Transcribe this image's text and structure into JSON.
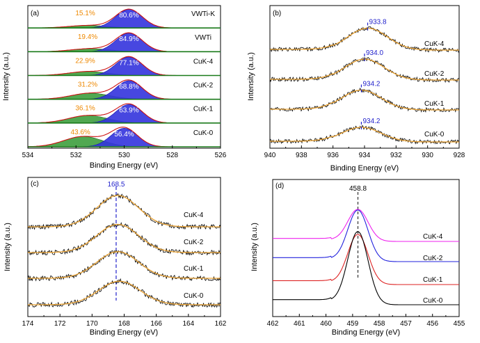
{
  "chart_data": [
    {
      "panel": "(a)",
      "type": "area",
      "xlabel": "Binding Energy (eV)",
      "ylabel": "Intensity (a.u.)",
      "xlim": [
        534,
        526
      ],
      "x_ticks": [
        534,
        532,
        530,
        528,
        526
      ],
      "grid": false,
      "colors": {
        "low_be_peak": "#3333dd",
        "high_be_peak": "#339933",
        "envelope": "#cc1111",
        "pct_low": "#2222cc",
        "pct_high": "#ee8800"
      },
      "series": [
        {
          "name": "VWTi-K",
          "pct_high_be": "15.1%",
          "pct_low_be": "80.6%",
          "peak_low_be": 529.8,
          "peak_high_be": 531.5,
          "area_low_be": 80.6,
          "area_high_be": 15.1
        },
        {
          "name": "VWTi",
          "pct_high_be": "19.4%",
          "pct_low_be": "84.9%",
          "peak_low_be": 529.8,
          "peak_high_be": 531.4,
          "area_low_be": 84.9,
          "area_high_be": 19.4
        },
        {
          "name": "CuK-4",
          "pct_high_be": "22.9%",
          "pct_low_be": "77.1%",
          "peak_low_be": 529.8,
          "peak_high_be": 531.5,
          "area_low_be": 77.1,
          "area_high_be": 22.9
        },
        {
          "name": "CuK-2",
          "pct_high_be": "31.2%",
          "pct_low_be": "68.8%",
          "peak_low_be": 529.8,
          "peak_high_be": 531.4,
          "area_low_be": 68.8,
          "area_high_be": 31.2
        },
        {
          "name": "CuK-1",
          "pct_high_be": "36.1%",
          "pct_low_be": "63.9%",
          "peak_low_be": 529.8,
          "peak_high_be": 531.5,
          "area_low_be": 63.9,
          "area_high_be": 36.1
        },
        {
          "name": "CuK-0",
          "pct_high_be": "43.6%",
          "pct_low_be": "56.4%",
          "peak_low_be": 530.0,
          "peak_high_be": 531.7,
          "area_low_be": 56.4,
          "area_high_be": 43.6
        }
      ]
    },
    {
      "panel": "(b)",
      "type": "line",
      "xlabel": "Binding Energy (eV)",
      "ylabel": "Intensity (a.u.)",
      "xlim": [
        940,
        928
      ],
      "x_ticks": [
        940,
        938,
        936,
        934,
        932,
        930,
        928
      ],
      "grid": false,
      "colors": {
        "raw": "#000000",
        "fit": "#e8a030",
        "marker": "#2222cc"
      },
      "series": [
        {
          "name": "CuK-4",
          "peak": 933.8,
          "peak_label": "933.8",
          "amplitude": 1.05
        },
        {
          "name": "CuK-2",
          "peak": 934.0,
          "peak_label": "934.0",
          "amplitude": 1.0
        },
        {
          "name": "CuK-1",
          "peak": 934.2,
          "peak_label": "934.2",
          "amplitude": 0.95
        },
        {
          "name": "CuK-0",
          "peak": 934.2,
          "peak_label": "934.2",
          "amplitude": 0.7
        }
      ]
    },
    {
      "panel": "(c)",
      "type": "line",
      "xlabel": "Binding Energy (eV)",
      "ylabel": "Intensity (a.u.)",
      "xlim": [
        174,
        162
      ],
      "x_ticks": [
        174,
        172,
        170,
        168,
        166,
        164,
        162
      ],
      "grid": false,
      "marker_value": 168.5,
      "marker_label": "168.5",
      "colors": {
        "raw": "#000000",
        "fit": "#e8a030",
        "marker": "#2222cc"
      },
      "series": [
        {
          "name": "CuK-4",
          "peak": 168.4,
          "amplitude": 1.0
        },
        {
          "name": "CuK-2",
          "peak": 168.4,
          "amplitude": 0.9
        },
        {
          "name": "CuK-1",
          "peak": 168.4,
          "amplitude": 0.85
        },
        {
          "name": "CuK-0",
          "peak": 168.3,
          "amplitude": 0.75
        }
      ]
    },
    {
      "panel": "(d)",
      "type": "line",
      "xlabel": "Binding Energy (eV)",
      "ylabel": "Intensity (a.u.)",
      "xlim": [
        462,
        455
      ],
      "x_ticks": [
        462,
        461,
        460,
        459,
        458,
        457,
        456,
        455
      ],
      "grid": false,
      "marker_value": 458.8,
      "marker_label": "458.8",
      "colors": {
        "marker": "#333333"
      },
      "series": [
        {
          "name": "CuK-4",
          "color": "#ee22ee",
          "peak": 458.8,
          "amplitude": 1.0
        },
        {
          "name": "CuK-2",
          "color": "#2222dd",
          "peak": 458.8,
          "amplitude": 1.0
        },
        {
          "name": "CuK-1",
          "color": "#dd2222",
          "peak": 458.8,
          "amplitude": 1.0
        },
        {
          "name": "CuK-0",
          "color": "#000000",
          "peak": 458.8,
          "amplitude": 1.0
        }
      ]
    }
  ]
}
